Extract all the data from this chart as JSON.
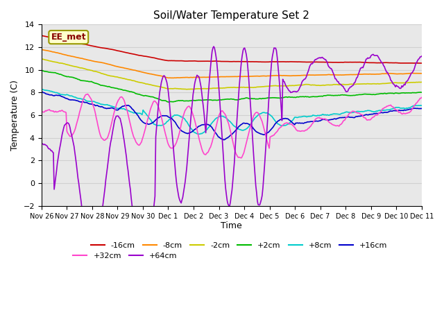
{
  "title": "Soil/Water Temperature Set 2",
  "xlabel": "Time",
  "ylabel": "Temperature (C)",
  "ylim": [
    -2,
    14
  ],
  "label_text": "EE_met",
  "grid_color": "#d0d0d0",
  "bg_color": "#e8e8e8",
  "series": {
    "-16cm": {
      "color": "#cc0000",
      "linewidth": 1.2
    },
    "-8cm": {
      "color": "#ff8800",
      "linewidth": 1.2
    },
    "-2cm": {
      "color": "#cccc00",
      "linewidth": 1.2
    },
    "+2cm": {
      "color": "#00bb00",
      "linewidth": 1.2
    },
    "+8cm": {
      "color": "#00cccc",
      "linewidth": 1.2
    },
    "+16cm": {
      "color": "#0000cc",
      "linewidth": 1.2
    },
    "+32cm": {
      "color": "#ff44cc",
      "linewidth": 1.2
    },
    "+64cm": {
      "color": "#9900cc",
      "linewidth": 1.2
    }
  },
  "xtick_labels": [
    "Nov 26",
    "Nov 27",
    "Nov 28",
    "Nov 29",
    "Nov 30",
    "Dec 1",
    "Dec 2",
    "Dec 3",
    "Dec 4",
    "Dec 5",
    "Dec 6",
    "Dec 7",
    "Dec 8",
    "Dec 9",
    "Dec 10",
    "Dec 11"
  ]
}
